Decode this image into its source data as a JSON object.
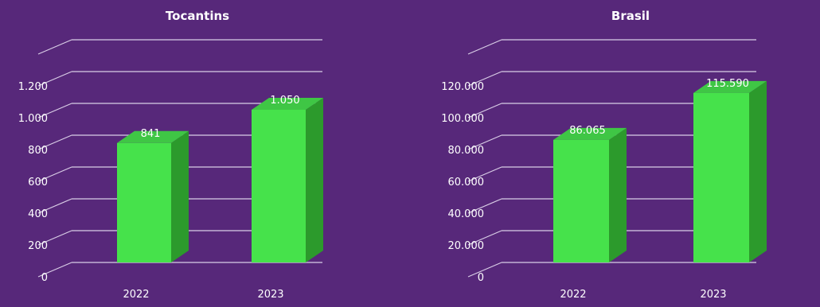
{
  "colors": {
    "background": "#57287a",
    "bar_front": "#46e24b",
    "bar_side": "#2c9a2c",
    "bar_top": "#3fc645",
    "grid": "#d9cde6",
    "text": "#ffffff"
  },
  "chart_data": [
    {
      "type": "bar",
      "title": "Tocantins",
      "categories": [
        "2022",
        "2023"
      ],
      "values": [
        841,
        1050
      ],
      "value_labels": [
        "841",
        "1.050"
      ],
      "ylim": [
        0,
        1400
      ],
      "yticks": [
        0,
        200,
        400,
        600,
        800,
        1000,
        1200
      ],
      "ytick_labels": [
        "0",
        "200",
        "400",
        "600",
        "800",
        "1.000",
        "1.200"
      ],
      "grid": true,
      "style": "3d-column"
    },
    {
      "type": "bar",
      "title": "Brasil",
      "categories": [
        "2022",
        "2023"
      ],
      "values": [
        86065,
        115590
      ],
      "value_labels": [
        "86.065",
        "115.590"
      ],
      "ylim": [
        0,
        140000
      ],
      "yticks": [
        0,
        20000,
        40000,
        60000,
        80000,
        100000,
        120000
      ],
      "ytick_labels": [
        "0",
        "20.000",
        "40.000",
        "60.000",
        "80.000",
        "100.000",
        "120.000"
      ],
      "grid": true,
      "style": "3d-column"
    }
  ]
}
